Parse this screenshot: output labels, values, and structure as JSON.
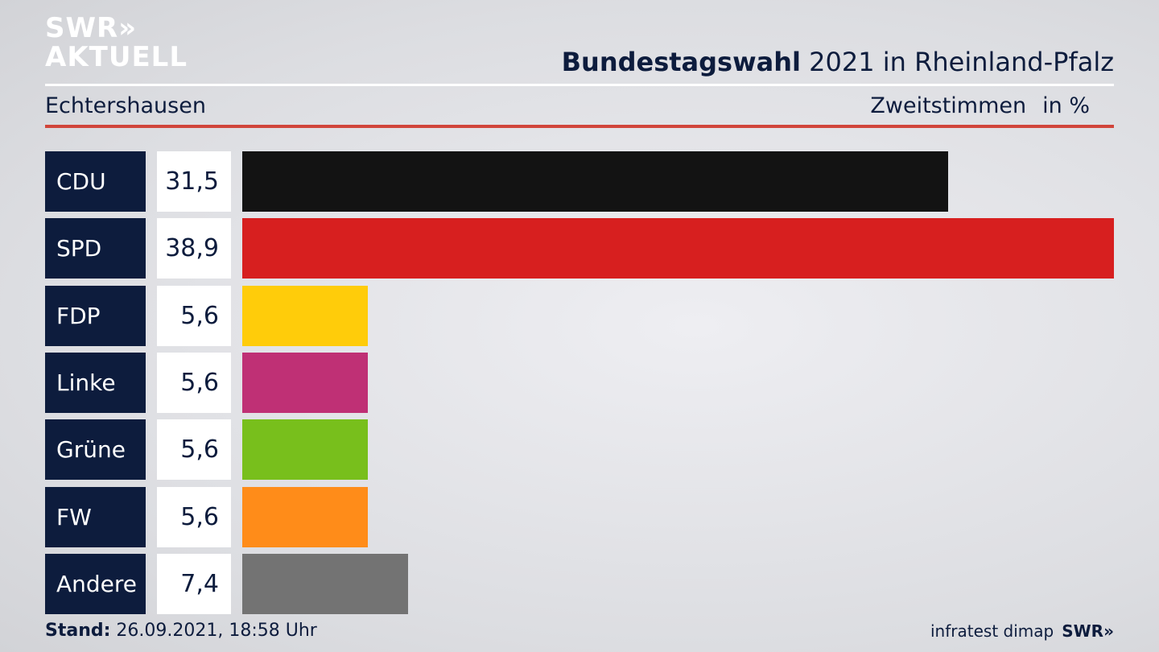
{
  "header": {
    "logo_line1": "SWR»",
    "logo_line2": "AKTUELL",
    "title_bold": "Bundestagswahl",
    "title_rest": " 2021 in Rheinland-Pfalz",
    "place": "Echtershausen",
    "vote_type": "Zweitstimmen",
    "unit": "in %"
  },
  "chart_data": {
    "type": "bar",
    "orientation": "horizontal",
    "categories": [
      "CDU",
      "SPD",
      "FDP",
      "Linke",
      "Grüne",
      "FW",
      "Andere"
    ],
    "values": [
      31.5,
      38.9,
      5.6,
      5.6,
      5.6,
      5.6,
      7.4
    ],
    "value_labels": [
      "31,5",
      "38,9",
      "5,6",
      "5,6",
      "5,6",
      "5,6",
      "7,4"
    ],
    "colors": [
      "#131313",
      "#d71f1f",
      "#ffcc0a",
      "#bf3075",
      "#78bf1c",
      "#ff8c19",
      "#737373"
    ],
    "xlim": [
      0,
      38.9
    ]
  },
  "footer": {
    "stand_label": "Stand:",
    "stand_value": " 26.09.2021, 18:58 Uhr",
    "source": "infratest dimap",
    "brand": "SWR»"
  }
}
